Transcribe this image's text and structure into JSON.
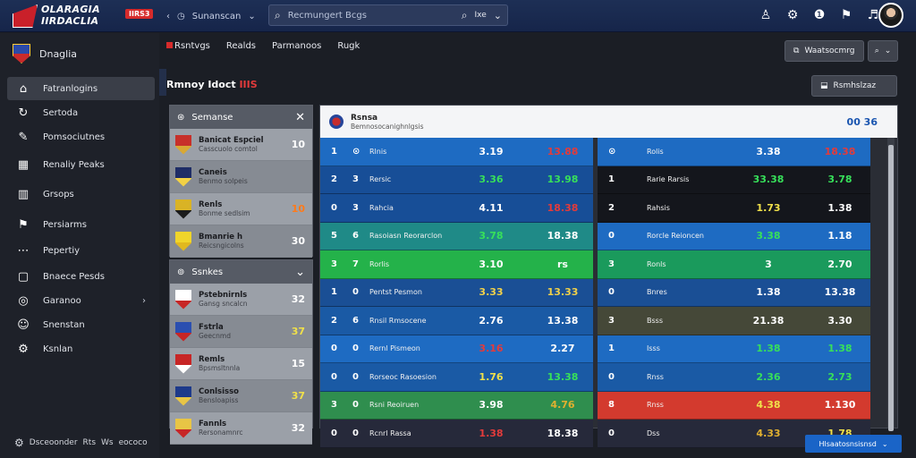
{
  "header": {
    "logo_line1": "OLARAGIA",
    "logo_line2": "IIRDACLIA",
    "live_badge": "IIRS3",
    "nav_label": "Sunanscan",
    "search_placeholder": "Recmungert Bcgs",
    "search_filter": "Ixe"
  },
  "sidebar": {
    "brand": "Dnaglia",
    "items": [
      {
        "label": "Fatranlogins",
        "icon": "home-icon"
      },
      {
        "label": "Sertoda",
        "icon": "refresh-icon"
      },
      {
        "label": "Pomsociutnes",
        "icon": "pin-icon"
      },
      {
        "label": "Renaliy Peaks",
        "icon": "calendar-icon"
      },
      {
        "label": "Grsops",
        "icon": "bars-icon"
      },
      {
        "label": "Persiarms",
        "icon": "bookmark-icon"
      },
      {
        "label": "Pepertiy",
        "icon": "dots-icon"
      },
      {
        "label": "Bnaece Pesds",
        "icon": "square-icon"
      },
      {
        "label": "Garanoo",
        "icon": "target-icon"
      },
      {
        "label": "Snenstan",
        "icon": "user-icon"
      },
      {
        "label": "Ksnlan",
        "icon": "settings-icon"
      }
    ],
    "footer_text": "Dsceoonder",
    "footer_code1": "Rts",
    "footer_code2": "Ws",
    "footer_code3": "eococo"
  },
  "tabs": [
    "Rsntvgs",
    "Realds",
    "Parmanoos",
    "Rugk"
  ],
  "buttons": {
    "top_right": "Waatsocmrg",
    "section": "Rsmhslzaz"
  },
  "section": {
    "title": "Rmnoy Idoct",
    "title_highlight": "IIIS"
  },
  "panel_top": {
    "title": "Semanse",
    "rows": [
      {
        "t1": "Banicat Espciel",
        "t2": "Casscuolo comtol",
        "score": "10",
        "crest": [
          "#c7302a",
          "#d8a834"
        ]
      },
      {
        "t1": "Caneis",
        "t2": "Benmo solpeis",
        "score": "",
        "crest": [
          "#1f2d66",
          "#f2d145"
        ]
      },
      {
        "t1": "Renls",
        "t2": "Bonme sedlsim",
        "score": "10",
        "crest": [
          "#d9b325",
          "#1b1b1b"
        ]
      },
      {
        "t1": "Bmanrie h",
        "t2": "Reicsngicolns",
        "score": "30",
        "crest": [
          "#f0d52a",
          "#e1b81f"
        ]
      }
    ],
    "score_colors": [
      "#ffffff",
      "#ffffff",
      "#ff7a1a",
      "#ffffff"
    ]
  },
  "panel_bottom": {
    "title": "Ssnkes",
    "rows": [
      {
        "t1": "Pstebnirnls",
        "t2": "Gansg sncalcn",
        "score": "32",
        "crest": [
          "#ffffff",
          "#c72626"
        ]
      },
      {
        "t1": "Fstrla",
        "t2": "Geecnmd",
        "score": "37",
        "crest": [
          "#2b4fb0",
          "#c72626"
        ]
      },
      {
        "t1": "Remls",
        "t2": "Bpsmsltnnla",
        "score": "15",
        "crest": [
          "#c72626",
          "#ffffff"
        ]
      },
      {
        "t1": "Conlsisso",
        "t2": "Bensloapiss",
        "score": "37",
        "crest": [
          "#1e3a8a",
          "#e8c545"
        ]
      },
      {
        "t1": "Fannls",
        "t2": "Rersonamnrc",
        "score": "32",
        "crest": [
          "#e8c545",
          "#c72626"
        ]
      }
    ],
    "score_colors": [
      "#ffffff",
      "#f0e04a",
      "#ffffff",
      "#f0e04a",
      "#ffffff"
    ]
  },
  "match": {
    "title": "Rsnsa",
    "subtitle": "Bemnosocanighnlgsis",
    "clock": "00 36"
  },
  "grid_left": [
    {
      "n1": "1",
      "n2": "⊙",
      "lbl": "Rlnis",
      "v1": "3.19",
      "v2": "13.88",
      "bg": "#1e6bc2",
      "c1": "#ffffff",
      "c2": "#e33b3b"
    },
    {
      "n1": "2",
      "n2": "3",
      "lbl": "Rersic",
      "v1": "3.36",
      "v2": "13.98",
      "bg": "#174e97",
      "c1": "#37e05a",
      "c2": "#37e05a"
    },
    {
      "n1": "0",
      "n2": "3",
      "lbl": "Rahcia",
      "v1": "4.11",
      "v2": "18.38",
      "bg": "#174e97",
      "c1": "#ffffff",
      "c2": "#e33b3b"
    },
    {
      "n1": "5",
      "n2": "6",
      "lbl": "Rasoiasn Reorarclon",
      "v1": "3.78",
      "v2": "18.38",
      "bg": "#1f8a87",
      "c1": "#37e05a",
      "c2": "#ffffff"
    },
    {
      "n1": "3",
      "n2": "7",
      "lbl": "Rorlis",
      "v1": "3.10",
      "v2": "rs",
      "bg": "#24b24a",
      "c1": "#ffffff",
      "c2": "#ffffff"
    },
    {
      "n1": "1",
      "n2": "0",
      "lbl": "Pentst Pesmon",
      "v1": "3.33",
      "v2": "13.33",
      "bg": "#1a4f95",
      "c1": "#f0d04a",
      "c2": "#f0d04a"
    },
    {
      "n1": "2",
      "n2": "6",
      "lbl": "Rnsil Rmsocene",
      "v1": "2.76",
      "v2": "13.38",
      "bg": "#1a5aa5",
      "c1": "#ffffff",
      "c2": "#ffffff"
    },
    {
      "n1": "0",
      "n2": "0",
      "lbl": "Rernl Pismeon",
      "v1": "3.16",
      "v2": "2.27",
      "bg": "#1e6bc2",
      "c1": "#e33b3b",
      "c2": "#ffffff"
    },
    {
      "n1": "0",
      "n2": "0",
      "lbl": "Rorseoc Rasoesion",
      "v1": "1.76",
      "v2": "13.38",
      "bg": "#1a5aa5",
      "c1": "#f0e04a",
      "c2": "#37e05a"
    },
    {
      "n1": "3",
      "n2": "0",
      "lbl": "Rsni Reoiruen",
      "v1": "3.98",
      "v2": "4.76",
      "bg": "#2f8e4e",
      "c1": "#ffffff",
      "c2": "#e0b030"
    },
    {
      "n1": "0",
      "n2": "0",
      "lbl": "Rcnrl Rassa",
      "v1": "1.38",
      "v2": "18.38",
      "bg": "#26293a",
      "c1": "#e33b3b",
      "c2": "#ffffff"
    }
  ],
  "grid_right": [
    {
      "n1": "⊙",
      "n2": "",
      "lbl": "Rolis",
      "v1": "3.38",
      "v2": "18.38",
      "bg": "#1e6bc2",
      "c1": "#ffffff",
      "c2": "#e33b3b"
    },
    {
      "n1": "1",
      "n2": "",
      "lbl": "Rarie Rarsis",
      "v1": "33.38",
      "v2": "3.78",
      "bg": "#14161c",
      "c1": "#37e05a",
      "c2": "#37e05a"
    },
    {
      "n1": "2",
      "n2": "",
      "lbl": "Rahsis",
      "v1": "1.73",
      "v2": "1.38",
      "bg": "#14161c",
      "c1": "#f0e04a",
      "c2": "#ffffff"
    },
    {
      "n1": "0",
      "n2": "",
      "lbl": "Rorcle Reioncen",
      "v1": "3.38",
      "v2": "1.18",
      "bg": "#1e6bc2",
      "c1": "#37e05a",
      "c2": "#ffffff"
    },
    {
      "n1": "3",
      "n2": "",
      "lbl": "Ronls",
      "v1": "3",
      "v2": "2.70",
      "bg": "#1a9a5c",
      "c1": "#ffffff",
      "c2": "#ffffff"
    },
    {
      "n1": "0",
      "n2": "",
      "lbl": "Bnres",
      "v1": "1.38",
      "v2": "13.38",
      "bg": "#1a4f95",
      "c1": "#ffffff",
      "c2": "#ffffff"
    },
    {
      "n1": "3",
      "n2": "",
      "lbl": "Bsss",
      "v1": "21.38",
      "v2": "3.30",
      "bg": "#454838",
      "c1": "#ffffff",
      "c2": "#ffffff"
    },
    {
      "n1": "1",
      "n2": "",
      "lbl": "Isss",
      "v1": "1.38",
      "v2": "1.38",
      "bg": "#1e6bc2",
      "c1": "#37e05a",
      "c2": "#37e05a"
    },
    {
      "n1": "0",
      "n2": "",
      "lbl": "Rnss",
      "v1": "2.36",
      "v2": "2.73",
      "bg": "#1a5aa5",
      "c1": "#37e05a",
      "c2": "#37e05a"
    },
    {
      "n1": "8",
      "n2": "",
      "lbl": "Rnss",
      "v1": "4.38",
      "v2": "1.130",
      "bg": "#d33a2e",
      "c1": "#f0e04a",
      "c2": "#ffffff"
    },
    {
      "n1": "0",
      "n2": "",
      "lbl": "Dss",
      "v1": "4.33",
      "v2": "1.78",
      "bg": "#26293a",
      "c1": "#e0b030",
      "c2": "#f0e04a"
    }
  ],
  "footer_button": "Hlsaatosnsisnsd"
}
